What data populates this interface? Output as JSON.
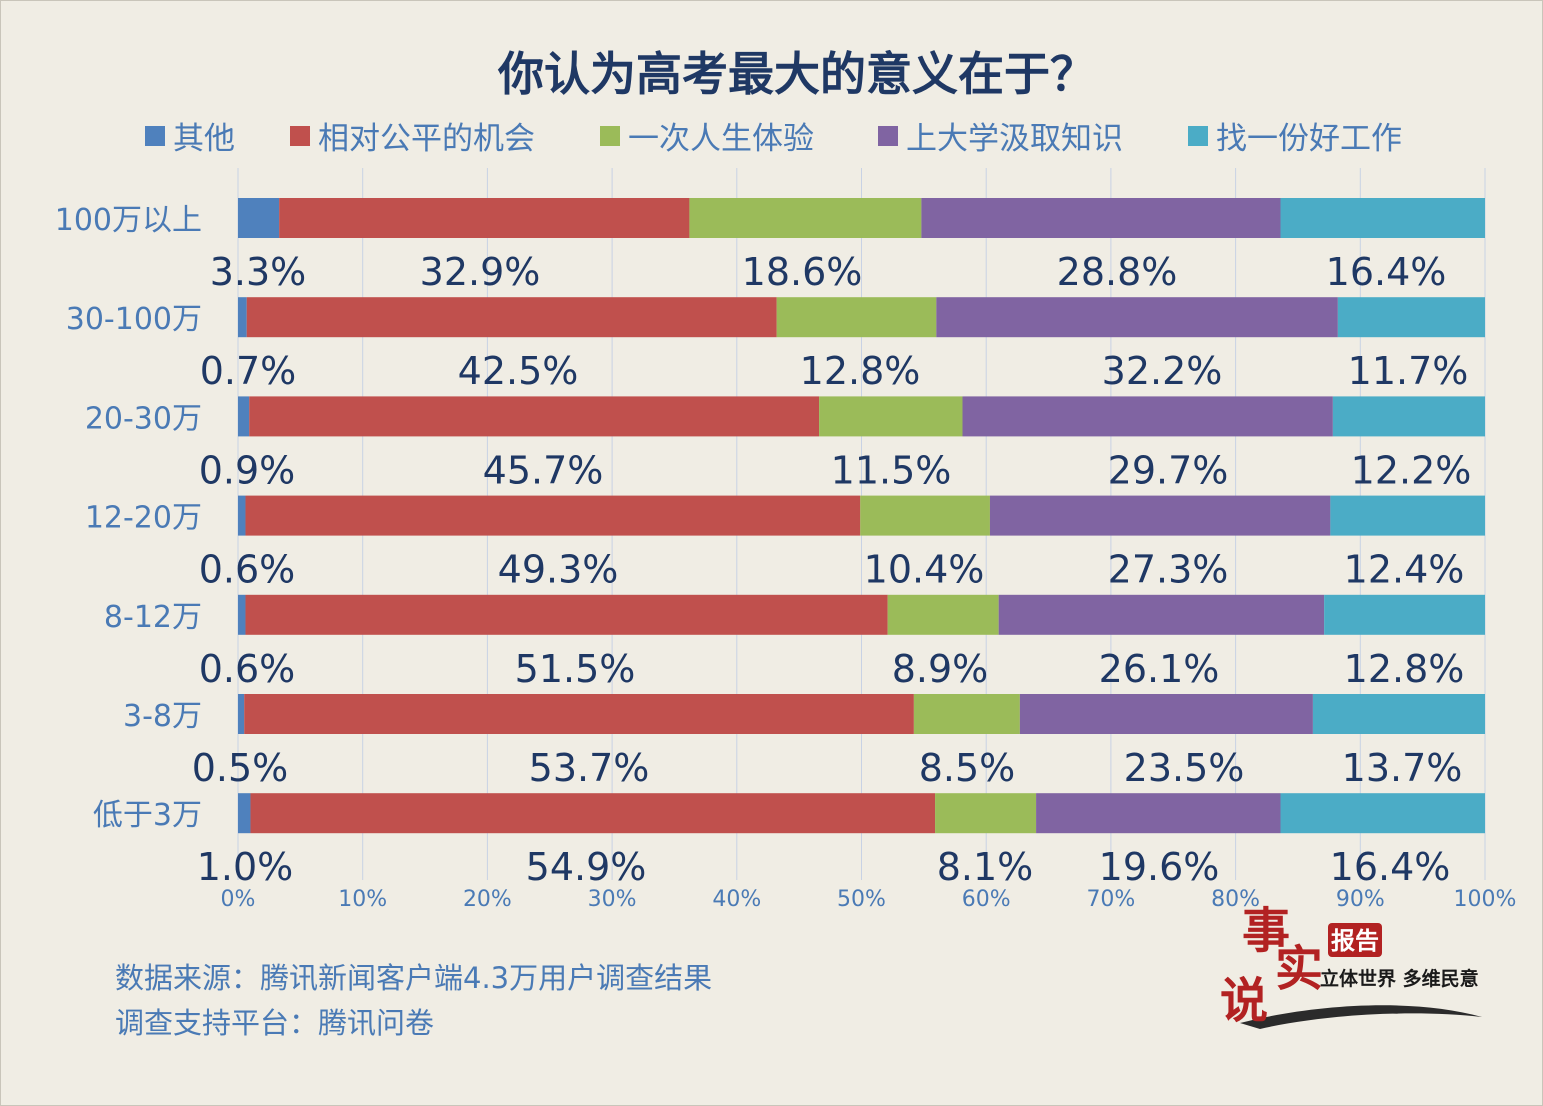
{
  "chart_data": {
    "type": "bar",
    "orientation": "horizontal",
    "stacked": true,
    "title": "你认为高考最大的意义在于？",
    "categories": [
      "100万以上",
      "30-100万",
      "20-30万",
      "12-20万",
      "8-12万",
      "3-8万",
      "低于3万"
    ],
    "series": [
      {
        "name": "其他",
        "color": "#4f81bd",
        "values": [
          3.3,
          0.7,
          0.9,
          0.6,
          0.6,
          0.5,
          1.0
        ]
      },
      {
        "name": "相对公平的机会",
        "color": "#c0504d",
        "values": [
          32.9,
          42.5,
          45.7,
          49.3,
          51.5,
          53.7,
          54.9
        ]
      },
      {
        "name": "一次人生体验",
        "color": "#9bbb59",
        "values": [
          18.6,
          12.8,
          11.5,
          10.4,
          8.9,
          8.5,
          8.1
        ]
      },
      {
        "name": "上大学汲取知识",
        "color": "#8064a2",
        "values": [
          28.8,
          32.2,
          29.7,
          27.3,
          26.1,
          23.5,
          19.6
        ]
      },
      {
        "name": "找一份好工作",
        "color": "#4bacc6",
        "values": [
          16.4,
          11.7,
          12.2,
          12.4,
          12.8,
          13.7,
          16.4
        ]
      }
    ],
    "value_labels": [
      [
        "3.3%",
        "32.9%",
        "18.6%",
        "28.8%",
        "16.4%"
      ],
      [
        "0.7%",
        "42.5%",
        "12.8%",
        "32.2%",
        "11.7%"
      ],
      [
        "0.9%",
        "45.7%",
        "11.5%",
        "29.7%",
        "12.2%"
      ],
      [
        "0.6%",
        "49.3%",
        "10.4%",
        "27.3%",
        "12.4%"
      ],
      [
        "0.6%",
        "51.5%",
        "8.9%",
        "26.1%",
        "12.8%"
      ],
      [
        "0.5%",
        "53.7%",
        "8.5%",
        "23.5%",
        "13.7%"
      ],
      [
        "1.0%",
        "54.9%",
        "8.1%",
        "19.6%",
        "16.4%"
      ]
    ],
    "xticks": [
      "0%",
      "10%",
      "20%",
      "30%",
      "40%",
      "50%",
      "60%",
      "70%",
      "80%",
      "90%",
      "100%"
    ],
    "xlim": [
      0,
      100
    ],
    "grid": true,
    "legend_position": "top"
  },
  "footer": {
    "source": "数据来源：腾讯新闻客户端4.3万用户调查结果",
    "platform": "调查支持平台：腾讯问卷"
  },
  "brand": {
    "main": "事实说",
    "badge": "报告",
    "slogan": "立体世界 多维民意"
  }
}
